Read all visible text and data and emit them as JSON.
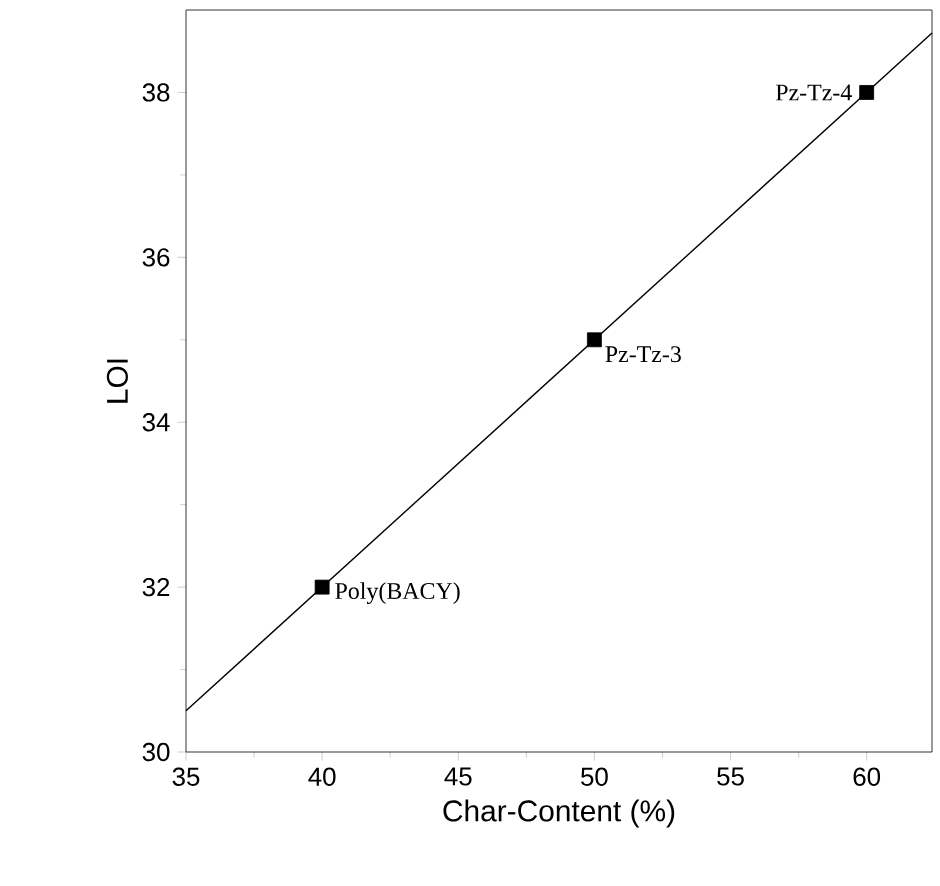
{
  "chart_data": {
    "type": "scatter",
    "xlabel": "Char-Content (%)",
    "ylabel": "LOI",
    "xlim": [
      35,
      62.4
    ],
    "ylim": [
      30,
      39
    ],
    "xticks": [
      35,
      40,
      45,
      50,
      55,
      60
    ],
    "yticks": [
      30,
      32,
      34,
      36,
      38
    ],
    "grid": false,
    "series": [
      {
        "color": "#000000",
        "marker": "square",
        "x": [
          40,
          50,
          60
        ],
        "values": [
          32,
          35,
          38
        ]
      },
      {
        "type": "line",
        "color": "#000000",
        "marker": "none",
        "line_style": "solid",
        "x": [
          35,
          62.4
        ],
        "values": [
          30.5,
          38.72
        ]
      }
    ],
    "annotations": [
      {
        "text": "Poly(BACY)",
        "x": 40,
        "y": 32
      },
      {
        "text": "Pz-Tz-3",
        "x": 50,
        "y": 35
      },
      {
        "text": "Pz-Tz-4",
        "x": 60,
        "y": 38
      }
    ]
  }
}
